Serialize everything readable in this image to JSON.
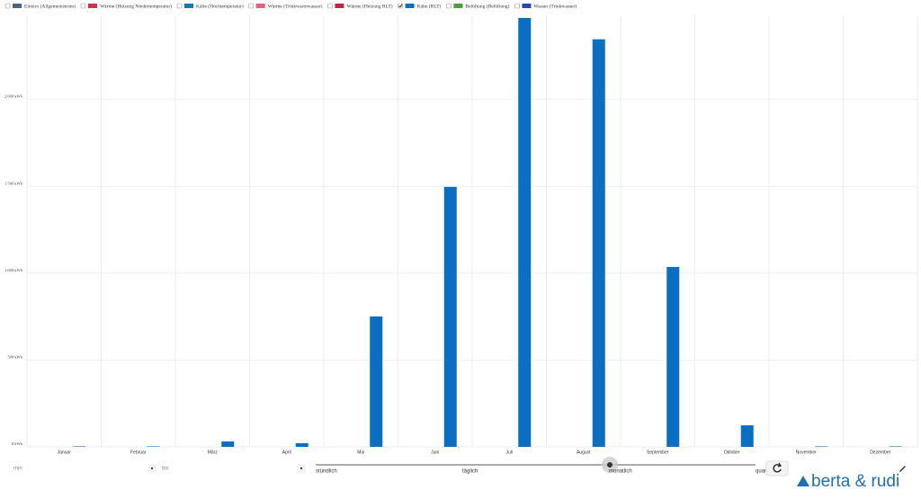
{
  "chart_data": {
    "type": "bar",
    "legend": [
      {
        "name": "Elektro (Allgemeinstrom)",
        "color": "#4a6582",
        "checked": false
      },
      {
        "name": "Wärme (Heizung Niedertemperatur)",
        "color": "#d4304f",
        "checked": false
      },
      {
        "name": "Kälte (Hochtemperatur)",
        "color": "#1478bd",
        "checked": false
      },
      {
        "name": "Wärme (Trinkwarmwasser)",
        "color": "#e3617d",
        "checked": false
      },
      {
        "name": "Wärme (Heizung RLT)",
        "color": "#c42446",
        "checked": false
      },
      {
        "name": "Kälte (RLT)",
        "color": "#0a6fc2",
        "checked": true
      },
      {
        "name": "Belüftung (Belüftung)",
        "color": "#4a9c3c",
        "checked": false
      },
      {
        "name": "Wasser (Trinkwasser)",
        "color": "#2548ae",
        "checked": false
      }
    ],
    "categories": [
      "Januar",
      "Februar",
      "März",
      "April",
      "Mai",
      "Juni",
      "Juli",
      "August",
      "September",
      "Oktober",
      "November",
      "Dezember"
    ],
    "values": [
      3,
      3,
      31,
      21,
      751,
      1497,
      2470,
      2347,
      1036,
      124,
      3,
      3
    ],
    "color": "#0a6fc2",
    "ylim": [
      0,
      2480
    ],
    "yticks": [
      {
        "value": 0,
        "label": "0 kWh"
      },
      {
        "value": 500,
        "label": "500 kWh"
      },
      {
        "value": 1000,
        "label": "1.000 kWh"
      },
      {
        "value": 1500,
        "label": "1.500 kWh"
      },
      {
        "value": 2000,
        "label": "2.000 kWh"
      }
    ],
    "grid": true
  },
  "controls": {
    "from": "min",
    "to": "bis",
    "resolution": [
      "stündlich",
      "täglich",
      "monatlich",
      "quar"
    ],
    "logo": "berta & rudi"
  }
}
